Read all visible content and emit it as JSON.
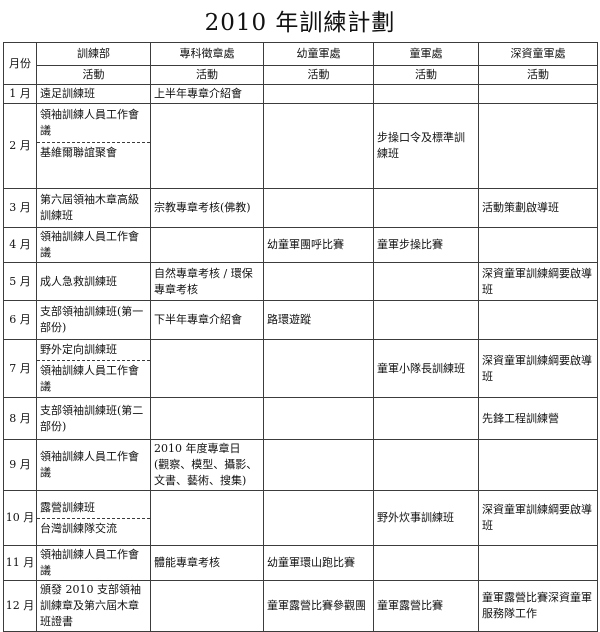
{
  "title": "2010 年訓練計劃",
  "table": {
    "month_header": "月份",
    "activity_label": "活動",
    "departments": [
      "訓練部",
      "專科徵章處",
      "幼童軍處",
      "童軍處",
      "深資童軍處"
    ],
    "rows": [
      {
        "month": "1 月",
        "cells": [
          {
            "lines": [
              "遠足訓練班"
            ]
          },
          {
            "lines": [
              "上半年專章介紹會"
            ]
          },
          {},
          {},
          {}
        ]
      },
      {
        "month": "2 月",
        "cells": [
          {
            "parts": [
              "領袖訓練人員工作會議",
              "基維爾聯誼聚會"
            ]
          },
          {},
          {},
          {
            "lines": [
              "步操口令及標準訓練班"
            ]
          },
          {}
        ]
      },
      {
        "month": "3 月",
        "cells": [
          {
            "lines": [
              "第六屆領袖木章高級訓練班"
            ]
          },
          {
            "lines": [
              "宗教專章考核(佛教)"
            ]
          },
          {},
          {},
          {
            "lines": [
              "活動策劃啟導班"
            ]
          }
        ]
      },
      {
        "month": "4 月",
        "cells": [
          {
            "lines": [
              "領袖訓練人員工作會議"
            ]
          },
          {},
          {
            "lines": [
              "幼童軍團呼比賽"
            ]
          },
          {
            "lines": [
              "童軍步操比賽"
            ]
          },
          {}
        ]
      },
      {
        "month": "5 月",
        "cells": [
          {
            "lines": [
              "成人急救訓練班"
            ]
          },
          {
            "lines": [
              "自然專章考核 / 環保專章考核"
            ]
          },
          {},
          {},
          {
            "lines": [
              "深資童軍訓練綱要啟導班"
            ]
          }
        ]
      },
      {
        "month": "6 月",
        "cells": [
          {
            "lines": [
              "支部領袖訓練班(第一部份)"
            ]
          },
          {
            "lines": [
              "下半年專章介紹會"
            ]
          },
          {
            "lines": [
              "路環遊蹤"
            ]
          },
          {},
          {}
        ]
      },
      {
        "month": "7 月",
        "cells": [
          {
            "parts": [
              "野外定向訓練班",
              "領袖訓練人員工作會議"
            ]
          },
          {},
          {},
          {
            "lines": [
              "童軍小隊長訓練班"
            ]
          },
          {
            "lines": [
              "深資童軍訓練綱要啟導班"
            ]
          }
        ]
      },
      {
        "month": "8 月",
        "cells": [
          {
            "lines": [
              "支部領袖訓練班(第二部份)"
            ]
          },
          {},
          {},
          {},
          {
            "lines": [
              "先鋒工程訓練營"
            ]
          }
        ]
      },
      {
        "month": "9 月",
        "cells": [
          {
            "lines": [
              "領袖訓練人員工作會議"
            ]
          },
          {
            "lines": [
              "2010 年度專章日",
              "(觀察、模型、攝影、文書、藝術、搜集)"
            ]
          },
          {},
          {},
          {}
        ]
      },
      {
        "month": "10 月",
        "cells": [
          {
            "parts": [
              "露營訓練班",
              "台灣訓練隊交流"
            ]
          },
          {},
          {},
          {
            "lines": [
              "野外炊事訓練班"
            ]
          },
          {
            "lines": [
              "深資童軍訓練綱要啟導班"
            ]
          }
        ]
      },
      {
        "month": "11 月",
        "cells": [
          {
            "lines": [
              "領袖訓練人員工作會議"
            ]
          },
          {
            "lines": [
              "體能專章考核"
            ]
          },
          {
            "lines": [
              "幼童軍環山跑比賽"
            ]
          },
          {},
          {}
        ]
      },
      {
        "month": "12 月",
        "cells": [
          {
            "lines": [
              "頒發 2010 支部領袖訓練章及第六屆木章班證書"
            ]
          },
          {},
          {
            "lines": [
              "童軍露營比賽參觀團"
            ]
          },
          {
            "lines": [
              "童軍露營比賽"
            ]
          },
          {
            "lines": [
              "童軍露營比賽深資童軍服務隊工作"
            ]
          }
        ]
      }
    ]
  },
  "colors": {
    "text": "#111111",
    "border": "#3c3c3c",
    "background": "#ffffff"
  }
}
